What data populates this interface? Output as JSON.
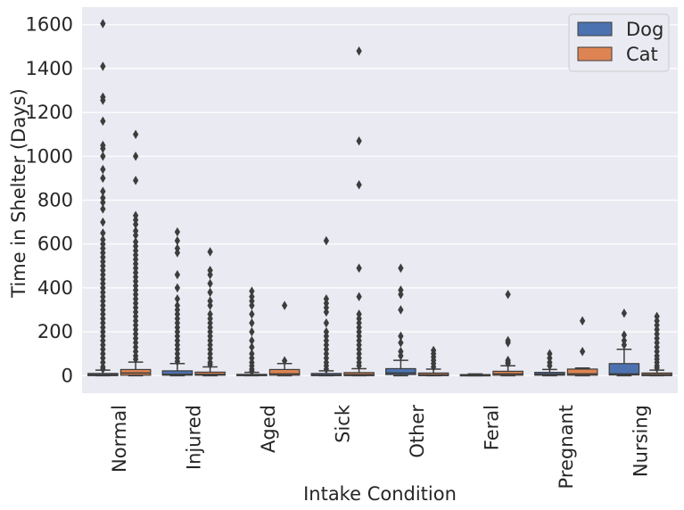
{
  "chart_data": {
    "type": "box",
    "xlabel": "Intake Condition",
    "ylabel": "Time in Shelter (Days)",
    "categories": [
      "Normal",
      "Injured",
      "Aged",
      "Sick",
      "Other",
      "Feral",
      "Pregnant",
      "Nursing"
    ],
    "ylim": [
      -80,
      1680
    ],
    "yticks": [
      0,
      200,
      400,
      600,
      800,
      1000,
      1200,
      1400,
      1600
    ],
    "grid": true,
    "legend_position": "top-right",
    "colors": {
      "Dog": "#4c72b0",
      "Cat": "#dd8452",
      "background": "#eaeaf2",
      "outlier": "#3d3d3d"
    },
    "series": [
      {
        "name": "Dog",
        "boxes": [
          {
            "q1": 0,
            "median": 4,
            "q3": 10,
            "whisker_low": 0,
            "whisker_high": 25,
            "outliers": [
              1605,
              1410,
              1270,
              1255,
              1160,
              1050,
              1035,
              1000,
              940,
              900,
              840,
              810,
              790,
              760,
              700,
              650,
              620,
              600,
              580,
              560,
              540,
              520,
              500,
              480,
              460,
              440,
              420,
              400,
              380,
              360,
              340,
              320,
              300,
              280,
              260,
              240,
              220,
              200,
              180,
              160,
              140,
              120,
              100,
              80,
              60,
              40,
              30
            ]
          },
          {
            "q1": 2,
            "median": 6,
            "q3": 22,
            "whisker_low": 0,
            "whisker_high": 55,
            "outliers": [
              655,
              615,
              580,
              560,
              460,
              400,
              350,
              320,
              300,
              280,
              260,
              240,
              220,
              200,
              180,
              160,
              140,
              120,
              100,
              80,
              65
            ]
          },
          {
            "q1": 0,
            "median": 2,
            "q3": 6,
            "whisker_low": 0,
            "whisker_high": 15,
            "outliers": [
              385,
              360,
              340,
              320,
              280,
              240,
              200,
              160,
              130,
              100,
              80,
              60,
              45,
              30,
              20
            ]
          },
          {
            "q1": 0,
            "median": 3,
            "q3": 10,
            "whisker_low": 0,
            "whisker_high": 22,
            "outliers": [
              615,
              350,
              330,
              310,
              290,
              240,
              200,
              180,
              160,
              140,
              120,
              100,
              80,
              60,
              45,
              30
            ]
          },
          {
            "q1": 5,
            "median": 12,
            "q3": 32,
            "whisker_low": 0,
            "whisker_high": 70,
            "outliers": [
              490,
              390,
              370,
              300,
              180,
              150,
              110,
              90
            ]
          },
          {
            "q1": 0,
            "median": 2,
            "q3": 5,
            "whisker_low": 0,
            "whisker_high": 8,
            "outliers": []
          },
          {
            "q1": 2,
            "median": 7,
            "q3": 15,
            "whisker_low": 0,
            "whisker_high": 28,
            "outliers": [
              100,
              80,
              60,
              45
            ]
          },
          {
            "q1": 3,
            "median": 8,
            "q3": 55,
            "whisker_low": 0,
            "whisker_high": 120,
            "outliers": [
              285,
              185,
              160,
              140
            ]
          }
        ]
      },
      {
        "name": "Cat",
        "boxes": [
          {
            "q1": 2,
            "median": 12,
            "q3": 28,
            "whisker_low": 0,
            "whisker_high": 62,
            "outliers": [
              1100,
              1000,
              890,
              730,
              710,
              690,
              660,
              640,
              610,
              590,
              570,
              550,
              530,
              510,
              490,
              470,
              450,
              430,
              410,
              390,
              370,
              350,
              330,
              310,
              290,
              270,
              250,
              230,
              210,
              190,
              170,
              150,
              130,
              110,
              90,
              75
            ]
          },
          {
            "q1": 2,
            "median": 6,
            "q3": 16,
            "whisker_low": 0,
            "whisker_high": 40,
            "outliers": [
              565,
              480,
              460,
              420,
              380,
              340,
              320,
              280,
              260,
              240,
              220,
              200,
              180,
              160,
              140,
              120,
              100,
              80,
              60,
              50
            ]
          },
          {
            "q1": 2,
            "median": 8,
            "q3": 28,
            "whisker_low": 0,
            "whisker_high": 55,
            "outliers": [
              320,
              68
            ]
          },
          {
            "q1": 0,
            "median": 5,
            "q3": 14,
            "whisker_low": 0,
            "whisker_high": 32,
            "outliers": [
              1480,
              1070,
              870,
              490,
              360,
              280,
              260,
              240,
              220,
              200,
              180,
              160,
              140,
              120,
              100,
              80,
              60,
              45
            ]
          },
          {
            "q1": 0,
            "median": 4,
            "q3": 12,
            "whisker_low": 0,
            "whisker_high": 30,
            "outliers": [
              115,
              100,
              85,
              70,
              55,
              40
            ]
          },
          {
            "q1": 2,
            "median": 8,
            "q3": 20,
            "whisker_low": 0,
            "whisker_high": 45,
            "outliers": [
              370,
              160,
              150,
              70,
              60,
              55
            ]
          },
          {
            "q1": 2,
            "median": 8,
            "q3": 30,
            "whisker_low": 0,
            "whisker_high": 35,
            "outliers": [
              250,
              110
            ]
          },
          {
            "q1": 0,
            "median": 5,
            "q3": 12,
            "whisker_low": 0,
            "whisker_high": 25,
            "outliers": [
              270,
              250,
              230,
              210,
              190,
              170,
              150,
              130,
              110,
              90,
              75,
              60,
              45,
              35
            ]
          }
        ]
      }
    ]
  }
}
